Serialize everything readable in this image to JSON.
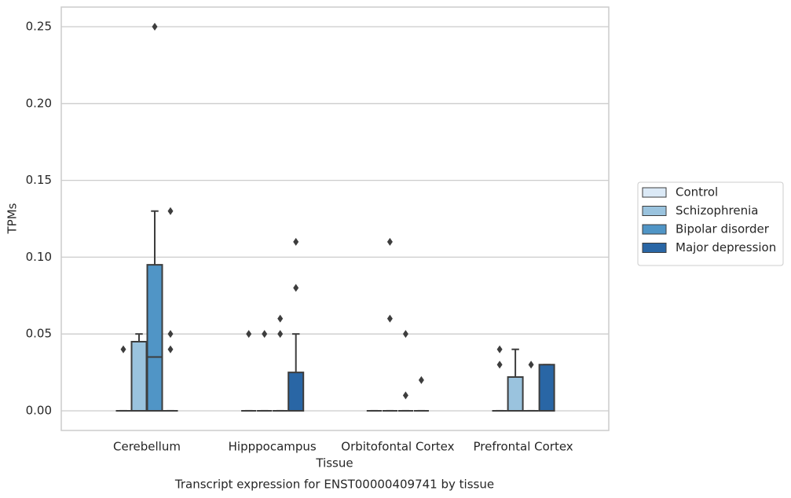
{
  "chart_data": {
    "type": "box",
    "title": "Transcript expression for ENST00000409741 by tissue",
    "xlabel": "Tissue",
    "ylabel": "TPMs",
    "categories": [
      "Cerebellum",
      "Hipppocampus",
      "Orbitofontal Cortex",
      "Prefrontal Cortex"
    ],
    "ylim": [
      -0.0128,
      0.2628
    ],
    "yticks": [
      {
        "value": 0,
        "label": "0.00"
      },
      0.05,
      {
        "value": 0.1,
        "label": "0.10"
      },
      0.15,
      {
        "value": 0.2,
        "label": "0.20"
      },
      0.25
    ],
    "grid": true,
    "legend_loc": "center right outside",
    "series": [
      {
        "name": "Control",
        "color": "#dbe9f6",
        "boxes": [
          {
            "q1": 0,
            "median": 0,
            "q3": 0,
            "whislo": 0,
            "whishi": 0,
            "fliers": [
              0.04
            ]
          },
          {
            "q1": 0,
            "median": 0,
            "q3": 0,
            "whislo": 0,
            "whishi": 0,
            "fliers": [
              0.05
            ]
          },
          {
            "q1": 0,
            "median": 0,
            "q3": 0,
            "whislo": 0,
            "whishi": 0,
            "fliers": []
          },
          {
            "q1": 0,
            "median": 0,
            "q3": 0,
            "whislo": 0,
            "whishi": 0,
            "fliers": [
              0.04,
              0.03
            ]
          }
        ]
      },
      {
        "name": "Schizophrenia",
        "color": "#9ac3de",
        "boxes": [
          {
            "q1": 0,
            "median": 0,
            "q3": 0.045,
            "whislo": 0,
            "whishi": 0.05,
            "fliers": []
          },
          {
            "q1": 0,
            "median": 0,
            "q3": 0,
            "whislo": 0,
            "whishi": 0,
            "fliers": [
              0.05
            ]
          },
          {
            "q1": 0,
            "median": 0,
            "q3": 0,
            "whislo": 0,
            "whishi": 0,
            "fliers": [
              0.11,
              0.06
            ]
          },
          {
            "q1": 0,
            "median": 0,
            "q3": 0.022,
            "whislo": 0,
            "whishi": 0.04,
            "fliers": []
          }
        ]
      },
      {
        "name": "Bipolar disorder",
        "color": "#5095c6",
        "boxes": [
          {
            "q1": 0,
            "median": 0.035,
            "q3": 0.095,
            "whislo": 0,
            "whishi": 0.13,
            "fliers": [
              0.25
            ]
          },
          {
            "q1": 0,
            "median": 0,
            "q3": 0,
            "whislo": 0,
            "whishi": 0,
            "fliers": [
              0.06,
              0.05
            ]
          },
          {
            "q1": 0,
            "median": 0,
            "q3": 0,
            "whislo": 0,
            "whishi": 0,
            "fliers": [
              0.05,
              0.01
            ]
          },
          {
            "q1": 0,
            "median": 0,
            "q3": 0,
            "whislo": 0,
            "whishi": 0,
            "fliers": [
              0.03
            ]
          }
        ]
      },
      {
        "name": "Major depression",
        "color": "#2966a5",
        "boxes": [
          {
            "q1": 0,
            "median": 0,
            "q3": 0,
            "whislo": 0,
            "whishi": 0,
            "fliers": [
              0.13,
              0.05,
              0.04
            ]
          },
          {
            "q1": 0,
            "median": 0,
            "q3": 0.025,
            "whislo": 0,
            "whishi": 0.05,
            "fliers": [
              0.08,
              0.11
            ]
          },
          {
            "q1": 0,
            "median": 0,
            "q3": 0,
            "whislo": 0,
            "whishi": 0,
            "fliers": [
              0.02
            ]
          },
          {
            "q1": 0,
            "median": 0,
            "q3": 0.03,
            "whislo": 0,
            "whishi": 0.03,
            "fliers": []
          }
        ]
      }
    ]
  }
}
